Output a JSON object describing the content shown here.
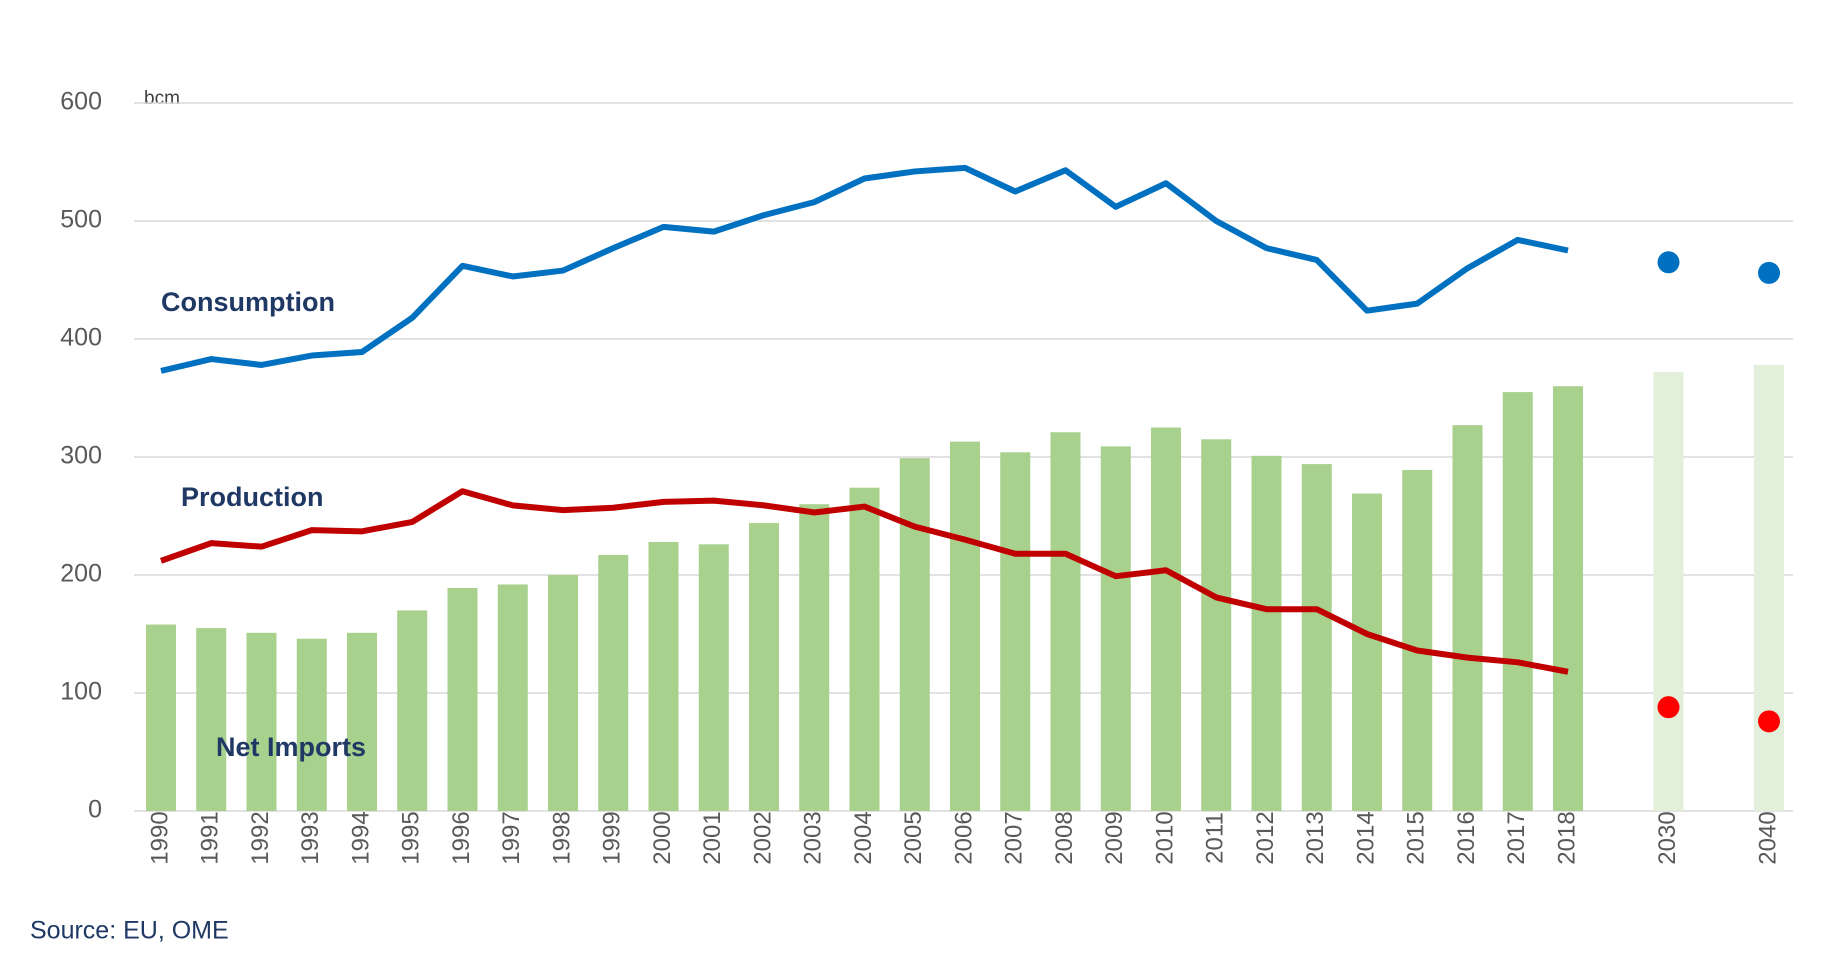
{
  "chart_data": {
    "type": "combo",
    "unit_label": "bcm",
    "source": "Source: EU, OME",
    "categories": [
      "1990",
      "1991",
      "1992",
      "1993",
      "1994",
      "1995",
      "1996",
      "1997",
      "1998",
      "1999",
      "2000",
      "2001",
      "2002",
      "2003",
      "2004",
      "2005",
      "2006",
      "2007",
      "2008",
      "2009",
      "2010",
      "2011",
      "2012",
      "2013",
      "2014",
      "2015",
      "2016",
      "2017",
      "2018",
      null,
      "2030",
      null,
      "2040"
    ],
    "ylim": [
      0,
      600
    ],
    "yticks": [
      0,
      100,
      200,
      300,
      400,
      500,
      600
    ],
    "grid": true,
    "series": [
      {
        "name": "Net Imports",
        "kind": "bar",
        "color": "#a9d18e",
        "colors": [
          "#a9d18e",
          "#a9d18e",
          "#a9d18e",
          "#a9d18e",
          "#a9d18e",
          "#a9d18e",
          "#a9d18e",
          "#a9d18e",
          "#a9d18e",
          "#a9d18e",
          "#a9d18e",
          "#a9d18e",
          "#a9d18e",
          "#a9d18e",
          "#a9d18e",
          "#a9d18e",
          "#a9d18e",
          "#a9d18e",
          "#a9d18e",
          "#a9d18e",
          "#a9d18e",
          "#a9d18e",
          "#a9d18e",
          "#a9d18e",
          "#a9d18e",
          "#a9d18e",
          "#a9d18e",
          "#a9d18e",
          "#a9d18e",
          null,
          "#e2efda",
          null,
          "#e2efda"
        ],
        "values": [
          158,
          155,
          151,
          146,
          151,
          170,
          189,
          192,
          200,
          217,
          228,
          226,
          244,
          260,
          274,
          299,
          313,
          304,
          321,
          309,
          325,
          315,
          301,
          294,
          269,
          289,
          327,
          355,
          360,
          null,
          372,
          null,
          378
        ]
      },
      {
        "name": "Consumption",
        "kind": "line",
        "color": "#0070c0",
        "marker_color": "#0070c0",
        "values": [
          373,
          383,
          378,
          386,
          389,
          418,
          462,
          453,
          458,
          477,
          495,
          491,
          505,
          516,
          536,
          542,
          545,
          525,
          543,
          512,
          532,
          500,
          477,
          467,
          424,
          430,
          460,
          484,
          475,
          null,
          465,
          null,
          456
        ]
      },
      {
        "name": "Production",
        "kind": "line",
        "color": "#c00000",
        "marker_color": "#ff0000",
        "values": [
          212,
          227,
          224,
          238,
          237,
          245,
          271,
          259,
          255,
          257,
          262,
          263,
          259,
          253,
          258,
          241,
          230,
          218,
          218,
          199,
          204,
          181,
          171,
          171,
          150,
          136,
          130,
          126,
          118,
          null,
          88,
          null,
          76
        ]
      }
    ]
  }
}
